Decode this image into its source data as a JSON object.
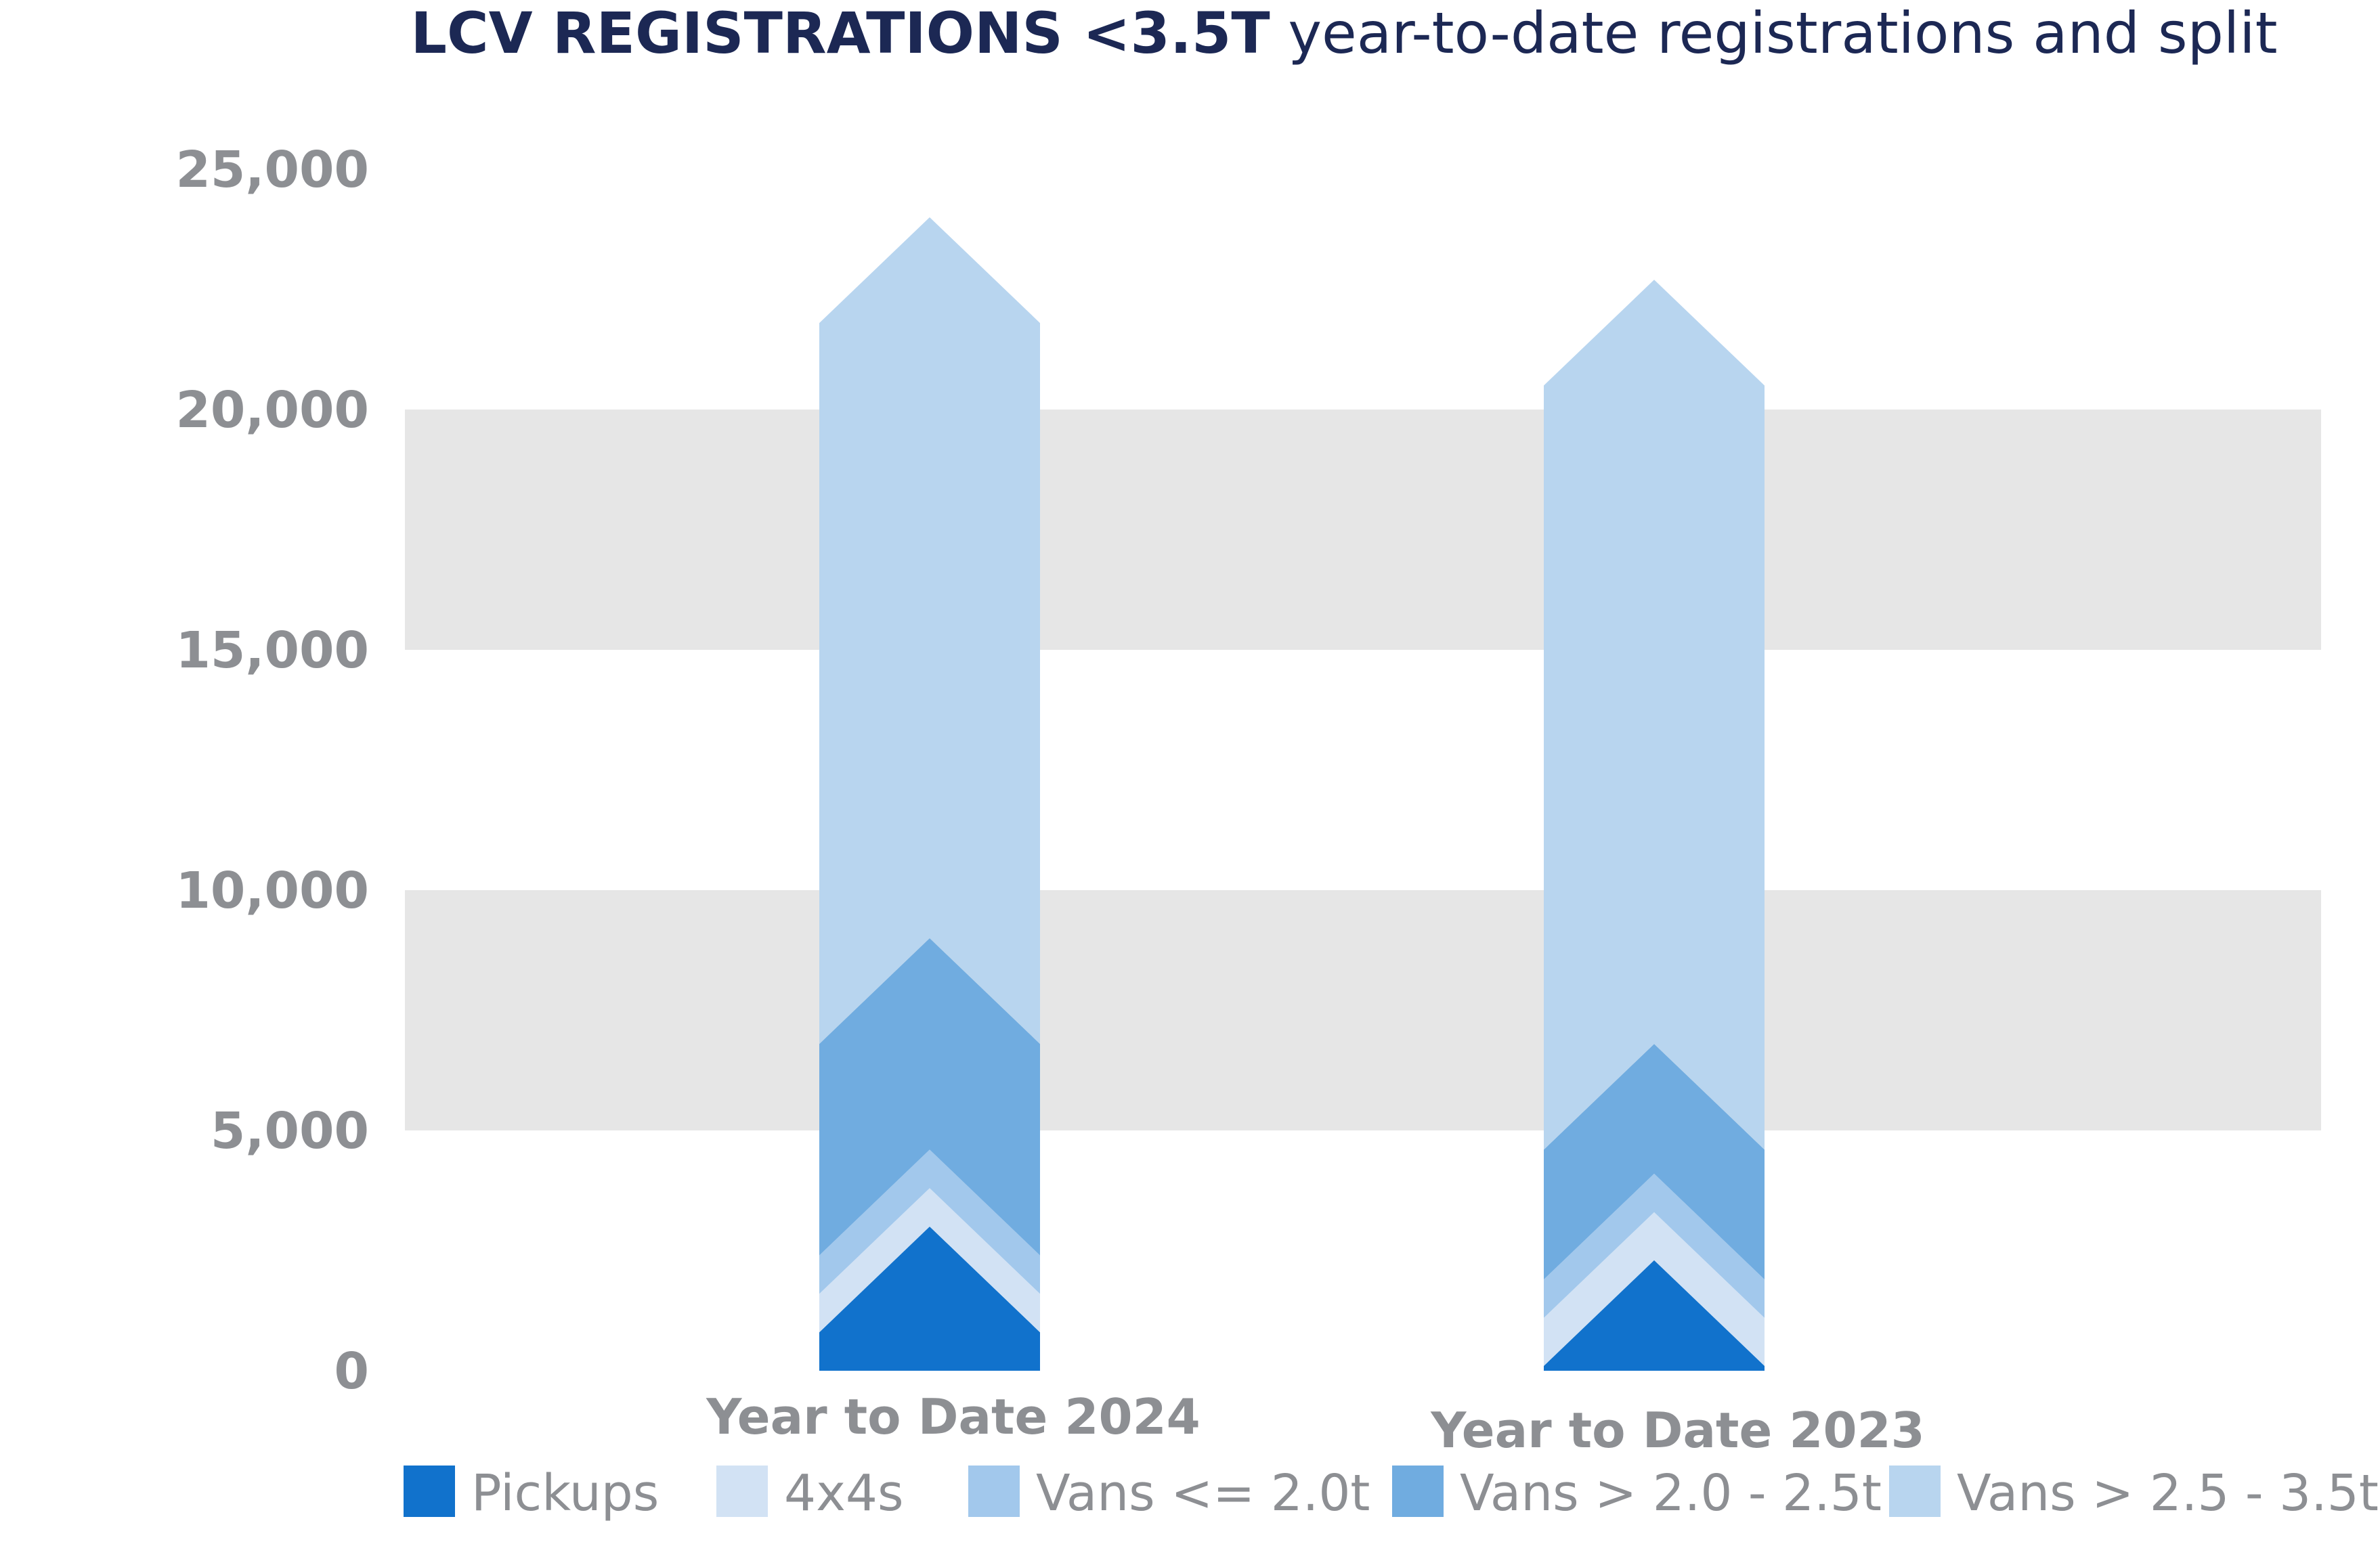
{
  "chart_data": {
    "type": "bar",
    "title_bold": "LCV REGISTRATIONS <3.5T",
    "title_rest": " year-to-date registrations and split",
    "categories": [
      "Year to Date 2024",
      "Year to Date 2023"
    ],
    "yticks": [
      "25,000",
      "20,000",
      "15,000",
      "10,000",
      "5,000",
      "0"
    ],
    "ylim": [
      0,
      25000
    ],
    "grid": "alternating horizontal bands",
    "legend_position": "bottom",
    "stacked": true,
    "series": [
      {
        "name": "Pickups",
        "color": "#1172cc",
        "values": [
          3000,
          2300
        ]
      },
      {
        "name": "4x4s",
        "color": "#d2e2f4",
        "values": [
          800,
          1000
        ]
      },
      {
        "name": "Vans <= 2.0t",
        "color": "#a2c8ec",
        "values": [
          800,
          800
        ]
      },
      {
        "name": "Vans > 2.0 - 2.5t",
        "color": "#70ace0",
        "values": [
          4400,
          2700
        ]
      },
      {
        "name": "Vans > 2.5 - 3.5t",
        "color": "#b8d5ef",
        "values": [
          15000,
          15900
        ]
      }
    ]
  }
}
